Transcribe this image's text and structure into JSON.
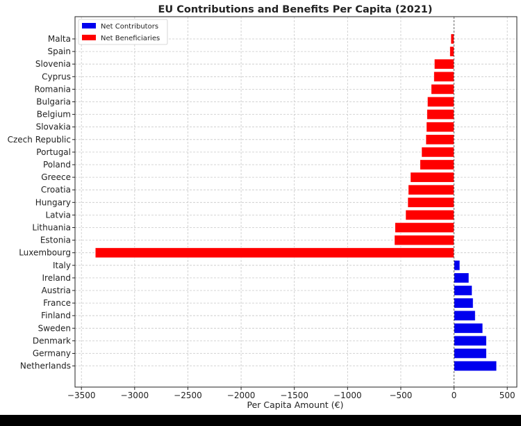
{
  "chart_data": {
    "type": "bar",
    "orientation": "horizontal",
    "title": "EU Contributions and Benefits Per Capita (2021)",
    "xlabel": "Per Capita Amount (€)",
    "ylabel": "",
    "xlim": [
      -3560,
      590
    ],
    "xticks": [
      -3500,
      -3000,
      -2500,
      -2000,
      -1500,
      -1000,
      -500,
      0,
      500
    ],
    "xtick_labels": [
      "−3500",
      "−3000",
      "−2500",
      "−2000",
      "−1500",
      "−1000",
      "−500",
      "0",
      "500"
    ],
    "grid": true,
    "zero_line": true,
    "legend_position": "top-left",
    "series": [
      {
        "name": "Net Contributors",
        "color": "#0000ee"
      },
      {
        "name": "Net Beneficiaries",
        "color": "#ff0000"
      }
    ],
    "categories": [
      "Malta",
      "Spain",
      "Slovenia",
      "Cyprus",
      "Romania",
      "Bulgaria",
      "Belgium",
      "Slovakia",
      "Czech Republic",
      "Portugal",
      "Poland",
      "Greece",
      "Croatia",
      "Hungary",
      "Latvia",
      "Lithuania",
      "Estonia",
      "Luxembourg",
      "Italy",
      "Ireland",
      "Austria",
      "France",
      "Finland",
      "Sweden",
      "Denmark",
      "Germany",
      "Netherlands"
    ],
    "values": [
      -30,
      -40,
      -185,
      -190,
      -215,
      -250,
      -255,
      -260,
      -265,
      -305,
      -320,
      -410,
      -430,
      -435,
      -455,
      -555,
      -560,
      -3370,
      55,
      140,
      170,
      180,
      200,
      270,
      305,
      305,
      400
    ]
  }
}
